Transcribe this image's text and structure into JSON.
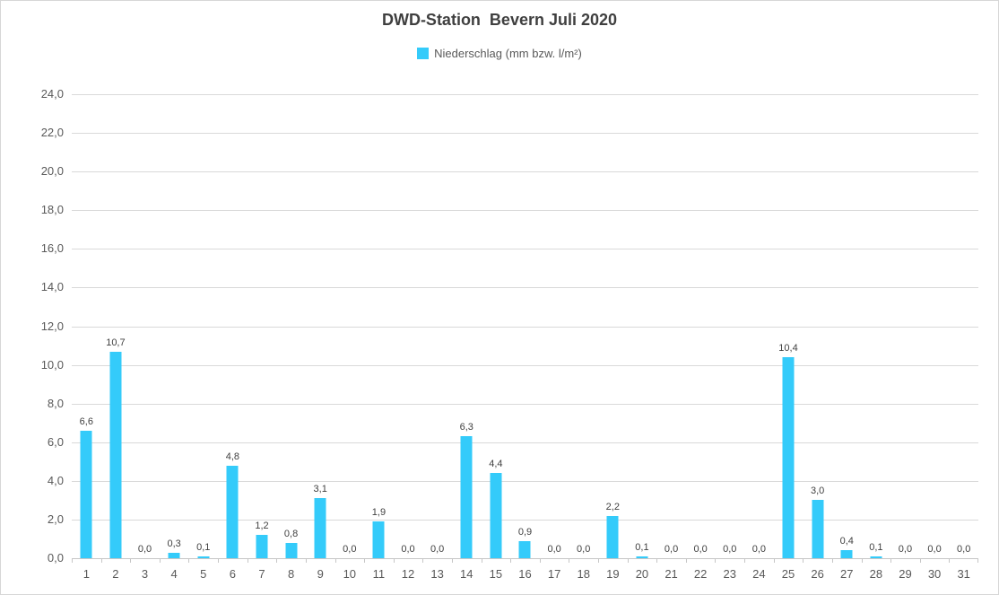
{
  "chart_data": {
    "type": "bar",
    "title": "DWD-Station  Bevern Juli 2020",
    "legend": "Niederschlag (mm bzw. l/m²)",
    "legend_position": "top",
    "categories": [
      "1",
      "2",
      "3",
      "4",
      "5",
      "6",
      "7",
      "8",
      "9",
      "10",
      "11",
      "12",
      "13",
      "14",
      "15",
      "16",
      "17",
      "18",
      "19",
      "20",
      "21",
      "22",
      "23",
      "24",
      "25",
      "26",
      "27",
      "28",
      "29",
      "30",
      "31"
    ],
    "values": [
      6.6,
      10.7,
      0.0,
      0.3,
      0.1,
      4.8,
      1.2,
      0.8,
      3.1,
      0.0,
      1.9,
      0.0,
      0.0,
      6.3,
      4.4,
      0.9,
      0.0,
      0.0,
      2.2,
      0.1,
      0.0,
      0.0,
      0.0,
      0.0,
      10.4,
      3.0,
      0.4,
      0.1,
      0.0,
      0.0,
      0.0
    ],
    "value_labels": [
      "6,6",
      "10,7",
      "0,0",
      "0,3",
      "0,1",
      "4,8",
      "1,2",
      "0,8",
      "3,1",
      "0,0",
      "1,9",
      "0,0",
      "0,0",
      "6,3",
      "4,4",
      "0,9",
      "0,0",
      "0,0",
      "2,2",
      "0,1",
      "0,0",
      "0,0",
      "0,0",
      "0,0",
      "10,4",
      "3,0",
      "0,4",
      "0,1",
      "0,0",
      "0,0",
      "0,0"
    ],
    "xlabel": "",
    "ylabel": "",
    "ylim": [
      0,
      24
    ],
    "ytick_step": 2,
    "ytick_labels": [
      "0,0",
      "2,0",
      "4,0",
      "6,0",
      "8,0",
      "10,0",
      "12,0",
      "14,0",
      "16,0",
      "18,0",
      "20,0",
      "22,0",
      "24,0"
    ],
    "grid": true,
    "bar_color": "#34cbfa"
  },
  "colors": {
    "accent": "#34cbfa",
    "gridline": "#d9d9d9",
    "axis": "#c6c6c6",
    "tick_text": "#595959",
    "value_label_text": "#404040",
    "title_text": "#3f3f3f"
  }
}
